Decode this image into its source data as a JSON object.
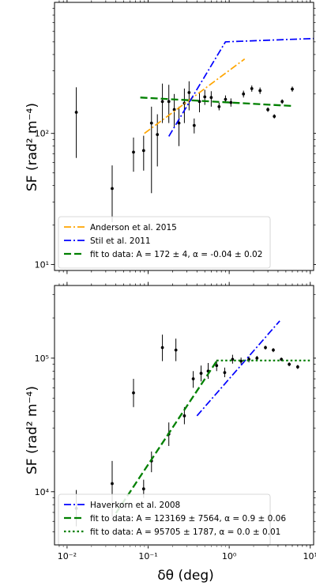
{
  "chart_data": [
    {
      "type": "scatter",
      "xscale": "log",
      "yscale": "log",
      "xlim": [
        0.007,
        11
      ],
      "ylim": [
        9,
        1000
      ],
      "ylabel": "SF (rad² m⁻⁴)",
      "xlabel": "",
      "xticks": [
        0.01,
        0.1,
        1,
        10
      ],
      "yticks": [
        {
          "value": 10,
          "label": "10¹"
        },
        {
          "value": 100,
          "label": "10²"
        }
      ],
      "legend_position": "lower-left",
      "points": [
        {
          "x": 0.013,
          "y": 145,
          "ylo": 65,
          "yhi": 225
        },
        {
          "x": 0.036,
          "y": 38,
          "ylo": 21,
          "yhi": 57
        },
        {
          "x": 0.066,
          "y": 72,
          "ylo": 51,
          "yhi": 93
        },
        {
          "x": 0.088,
          "y": 74,
          "ylo": 52,
          "yhi": 96
        },
        {
          "x": 0.11,
          "y": 120,
          "ylo": 35,
          "yhi": 160
        },
        {
          "x": 0.13,
          "y": 98,
          "ylo": 56,
          "yhi": 140
        },
        {
          "x": 0.15,
          "y": 175,
          "ylo": 120,
          "yhi": 240
        },
        {
          "x": 0.18,
          "y": 175,
          "ylo": 120,
          "yhi": 235
        },
        {
          "x": 0.21,
          "y": 152,
          "ylo": 110,
          "yhi": 200
        },
        {
          "x": 0.24,
          "y": 120,
          "ylo": 80,
          "yhi": 160
        },
        {
          "x": 0.28,
          "y": 170,
          "ylo": 120,
          "yhi": 220
        },
        {
          "x": 0.32,
          "y": 205,
          "ylo": 150,
          "yhi": 250
        },
        {
          "x": 0.37,
          "y": 115,
          "ylo": 100,
          "yhi": 130
        },
        {
          "x": 0.43,
          "y": 175,
          "ylo": 145,
          "yhi": 205
        },
        {
          "x": 0.5,
          "y": 190,
          "ylo": 165,
          "yhi": 215
        },
        {
          "x": 0.6,
          "y": 188,
          "ylo": 160,
          "yhi": 210
        },
        {
          "x": 0.75,
          "y": 160,
          "ylo": 150,
          "yhi": 172
        },
        {
          "x": 0.9,
          "y": 182,
          "ylo": 170,
          "yhi": 195
        },
        {
          "x": 1.05,
          "y": 172,
          "ylo": 160,
          "yhi": 185
        },
        {
          "x": 1.5,
          "y": 200,
          "ylo": 188,
          "yhi": 212
        },
        {
          "x": 1.9,
          "y": 220,
          "ylo": 208,
          "yhi": 232
        },
        {
          "x": 2.4,
          "y": 212,
          "ylo": 200,
          "yhi": 224
        },
        {
          "x": 3.0,
          "y": 152,
          "ylo": 146,
          "yhi": 158
        },
        {
          "x": 3.6,
          "y": 135,
          "ylo": 130,
          "yhi": 140
        },
        {
          "x": 4.5,
          "y": 175,
          "ylo": 168,
          "yhi": 182
        },
        {
          "x": 6.0,
          "y": 218,
          "ylo": 208,
          "yhi": 228
        }
      ],
      "series": [
        {
          "name": "Anderson et al. 2015",
          "color": "#ffa500",
          "style": "dashdot",
          "x": [
            0.09,
            1.55
          ],
          "y": [
            100,
            370
          ]
        },
        {
          "name": "Stil et al. 2011",
          "color": "#0000ff",
          "style": "dashdot",
          "x": [
            0.18,
            0.9,
            11
          ],
          "y": [
            95,
            500,
            530
          ]
        },
        {
          "name": "fit to data: A = 172 ± 4, α = -0.04 ± 0.02",
          "color": "#008000",
          "style": "dashed",
          "x": [
            0.08,
            6.0
          ],
          "y": [
            188,
            162
          ]
        }
      ]
    },
    {
      "type": "scatter",
      "xscale": "log",
      "yscale": "log",
      "xlim": [
        0.007,
        11
      ],
      "ylim": [
        4000,
        350000
      ],
      "ylabel": "SF (rad² m⁻⁴)",
      "xlabel": "δθ (deg)",
      "xticks": [
        {
          "value": 0.01,
          "label": "10⁻²"
        },
        {
          "value": 0.1,
          "label": "10⁻¹"
        },
        {
          "value": 1,
          "label": "10⁰"
        },
        {
          "value": 10,
          "label": "10¹"
        }
      ],
      "yticks": [
        {
          "value": 10000,
          "label": "10⁴"
        },
        {
          "value": 100000,
          "label": "10⁵"
        }
      ],
      "legend_position": "lower-left",
      "points": [
        {
          "x": 0.013,
          "y": 7500,
          "ylo": 5500,
          "yhi": 10300
        },
        {
          "x": 0.036,
          "y": 11500,
          "ylo": 6500,
          "yhi": 17000
        },
        {
          "x": 0.066,
          "y": 55000,
          "ylo": 43000,
          "yhi": 70000
        },
        {
          "x": 0.088,
          "y": 10500,
          "ylo": 9000,
          "yhi": 12300
        },
        {
          "x": 0.11,
          "y": 17000,
          "ylo": 14000,
          "yhi": 20000
        },
        {
          "x": 0.15,
          "y": 120000,
          "ylo": 95000,
          "yhi": 150000
        },
        {
          "x": 0.18,
          "y": 27000,
          "ylo": 22000,
          "yhi": 33000
        },
        {
          "x": 0.22,
          "y": 115000,
          "ylo": 95000,
          "yhi": 140000
        },
        {
          "x": 0.28,
          "y": 37000,
          "ylo": 32000,
          "yhi": 43000
        },
        {
          "x": 0.36,
          "y": 70000,
          "ylo": 60000,
          "yhi": 80000
        },
        {
          "x": 0.45,
          "y": 77000,
          "ylo": 67000,
          "yhi": 88000
        },
        {
          "x": 0.55,
          "y": 80000,
          "ylo": 70000,
          "yhi": 92000
        },
        {
          "x": 0.7,
          "y": 88000,
          "ylo": 80000,
          "yhi": 97000
        },
        {
          "x": 0.88,
          "y": 78000,
          "ylo": 72000,
          "yhi": 85000
        },
        {
          "x": 1.1,
          "y": 98000,
          "ylo": 91000,
          "yhi": 106000
        },
        {
          "x": 1.4,
          "y": 95000,
          "ylo": 90000,
          "yhi": 101000
        },
        {
          "x": 1.75,
          "y": 98000,
          "ylo": 93000,
          "yhi": 103000
        },
        {
          "x": 2.2,
          "y": 100000,
          "ylo": 96000,
          "yhi": 104000
        },
        {
          "x": 2.8,
          "y": 120000,
          "ylo": 116000,
          "yhi": 124000
        },
        {
          "x": 3.5,
          "y": 115000,
          "ylo": 111000,
          "yhi": 119000
        },
        {
          "x": 4.4,
          "y": 98000,
          "ylo": 95000,
          "yhi": 101000
        },
        {
          "x": 5.5,
          "y": 90000,
          "ylo": 87000,
          "yhi": 93000
        },
        {
          "x": 7.0,
          "y": 86000,
          "ylo": 83000,
          "yhi": 89000
        }
      ],
      "series": [
        {
          "name": "Haverkorn et al. 2008",
          "color": "#0000ff",
          "style": "dashdot",
          "x": [
            0.4,
            4.2
          ],
          "y": [
            37000,
            190000
          ]
        },
        {
          "name": "fit to data: A = 123169 ± 7564, α = 0.9 ± 0.06",
          "color": "#008000",
          "style": "dashed",
          "x": [
            0.04,
            0.7
          ],
          "y": [
            6900,
            95000
          ]
        },
        {
          "name": "fit to data: A = 95705 ± 1787, α = 0.0 ± 0.01",
          "color": "#008000",
          "style": "dotted",
          "x": [
            0.7,
            10.5
          ],
          "y": [
            96000,
            96000
          ]
        }
      ]
    }
  ]
}
